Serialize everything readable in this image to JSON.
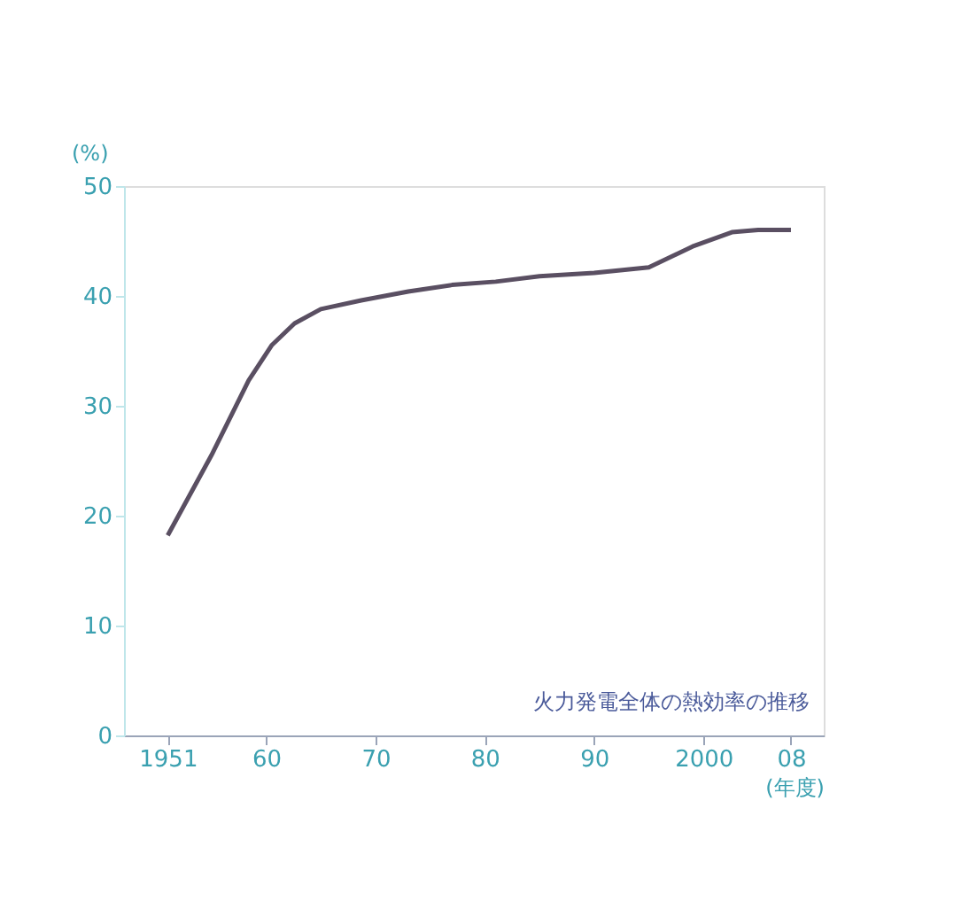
{
  "chart_data": {
    "type": "line",
    "xlabel": "(年度)",
    "ylabel": "(%)",
    "x": [
      1951,
      1955,
      1958.4,
      1960.5,
      1962.6,
      1965,
      1968.7,
      1973,
      1977,
      1981,
      1985,
      1990,
      1995,
      1999,
      2002.6,
      2005,
      2008
    ],
    "series": [
      {
        "color": "#5a4f62",
        "values": [
          18.2,
          25.5,
          32.3,
          35.5,
          37.5,
          38.8,
          39.6,
          40.4,
          41,
          41.3,
          41.8,
          42.1,
          42.6,
          44.5,
          45.8,
          46,
          46
        ]
      }
    ],
    "xlim": [
      1947,
      2011
    ],
    "xticks": [
      1951,
      {
        "value": 1960,
        "label": "60"
      },
      {
        "value": 1970,
        "label": "70"
      },
      {
        "value": 1980,
        "label": "80"
      },
      {
        "value": 1990,
        "label": "90"
      },
      2000,
      {
        "value": 2008,
        "label": "08"
      }
    ],
    "ylim": [
      0,
      50
    ],
    "yticks": [
      0,
      10,
      20,
      30,
      40,
      50
    ],
    "grid": false,
    "annotations": [
      {
        "text": "火力発電全体の熱効率の推移"
      }
    ]
  }
}
